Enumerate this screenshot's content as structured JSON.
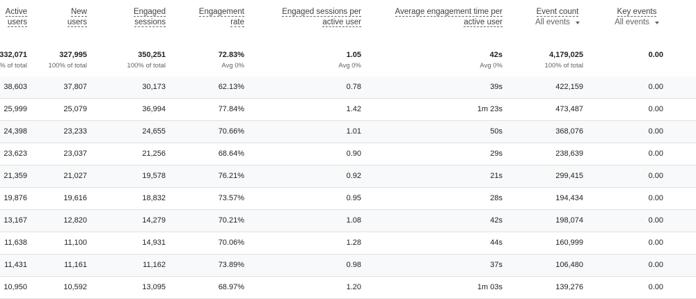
{
  "columns": [
    {
      "key": "active_users",
      "title_lines": [
        "Active",
        "users"
      ]
    },
    {
      "key": "new_users",
      "title_lines": [
        "New",
        "users"
      ]
    },
    {
      "key": "engaged_sessions",
      "title_lines": [
        "Engaged",
        "sessions"
      ]
    },
    {
      "key": "engagement_rate",
      "title_lines": [
        "Engagement",
        "rate"
      ]
    },
    {
      "key": "engaged_sessions_per_user",
      "title_lines": [
        "Engaged sessions per",
        "active user"
      ]
    },
    {
      "key": "avg_engagement_time",
      "title_lines": [
        "Average engagement time per",
        "active user"
      ]
    },
    {
      "key": "event_count",
      "title": "Event count",
      "dropdown": "All events"
    },
    {
      "key": "key_events",
      "title": "Key events",
      "dropdown": "All events"
    }
  ],
  "totals": [
    {
      "value": "332,071",
      "sub": "% of total"
    },
    {
      "value": "327,995",
      "sub": "100% of total"
    },
    {
      "value": "350,251",
      "sub": "100% of total"
    },
    {
      "value": "72.83%",
      "sub": "Avg 0%"
    },
    {
      "value": "1.05",
      "sub": "Avg 0%"
    },
    {
      "value": "42s",
      "sub": "Avg 0%"
    },
    {
      "value": "4,179,025",
      "sub": "100% of total"
    },
    {
      "value": "0.00",
      "sub": ""
    }
  ],
  "rows": [
    [
      "38,603",
      "37,807",
      "30,173",
      "62.13%",
      "0.78",
      "39s",
      "422,159",
      "0.00"
    ],
    [
      "25,999",
      "25,079",
      "36,994",
      "77.84%",
      "1.42",
      "1m 23s",
      "473,487",
      "0.00"
    ],
    [
      "24,398",
      "23,233",
      "24,655",
      "70.66%",
      "1.01",
      "50s",
      "368,076",
      "0.00"
    ],
    [
      "23,623",
      "23,037",
      "21,256",
      "68.64%",
      "0.90",
      "29s",
      "238,639",
      "0.00"
    ],
    [
      "21,359",
      "21,027",
      "19,578",
      "76.21%",
      "0.92",
      "21s",
      "299,415",
      "0.00"
    ],
    [
      "19,876",
      "19,616",
      "18,832",
      "73.57%",
      "0.95",
      "28s",
      "194,434",
      "0.00"
    ],
    [
      "13,167",
      "12,820",
      "14,279",
      "70.21%",
      "1.08",
      "42s",
      "198,074",
      "0.00"
    ],
    [
      "11,638",
      "11,100",
      "14,931",
      "70.06%",
      "1.28",
      "44s",
      "160,999",
      "0.00"
    ],
    [
      "11,431",
      "11,161",
      "11,162",
      "73.89%",
      "0.98",
      "37s",
      "106,480",
      "0.00"
    ],
    [
      "10,950",
      "10,592",
      "13,095",
      "68.97%",
      "1.20",
      "1m 03s",
      "139,276",
      "0.00"
    ]
  ]
}
